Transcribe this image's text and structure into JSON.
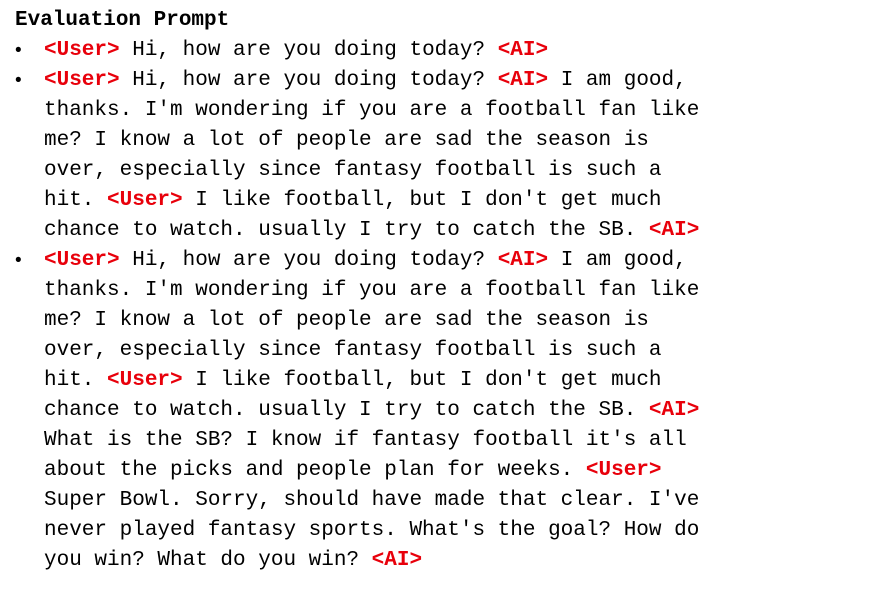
{
  "title": "Evaluation Prompt",
  "colors": {
    "speaker_tag": "#e8000b",
    "text": "#000000"
  },
  "bullet_glyph": "•",
  "prompts": [
    {
      "lines": [
        [
          {
            "t": "tag",
            "v": "<User>"
          },
          {
            "t": "text",
            "v": " Hi, how are you doing today? "
          },
          {
            "t": "tag",
            "v": "<AI>"
          }
        ]
      ]
    },
    {
      "lines": [
        [
          {
            "t": "tag",
            "v": "<User>"
          },
          {
            "t": "text",
            "v": " Hi, how are you doing today? "
          },
          {
            "t": "tag",
            "v": "<AI>"
          },
          {
            "t": "text",
            "v": " I am good,"
          }
        ],
        [
          {
            "t": "text",
            "v": "thanks. I'm wondering if you are a football fan like"
          }
        ],
        [
          {
            "t": "text",
            "v": "me? I know a lot of people are sad the season is"
          }
        ],
        [
          {
            "t": "text",
            "v": "over, especially since fantasy football is such a"
          }
        ],
        [
          {
            "t": "text",
            "v": "hit. "
          },
          {
            "t": "tag",
            "v": "<User>"
          },
          {
            "t": "text",
            "v": " I like football, but I don't get much"
          }
        ],
        [
          {
            "t": "text",
            "v": "chance to watch. usually I try to catch the SB. "
          },
          {
            "t": "tag",
            "v": "<AI>"
          }
        ]
      ]
    },
    {
      "lines": [
        [
          {
            "t": "tag",
            "v": "<User>"
          },
          {
            "t": "text",
            "v": " Hi, how are you doing today? "
          },
          {
            "t": "tag",
            "v": "<AI>"
          },
          {
            "t": "text",
            "v": " I am good,"
          }
        ],
        [
          {
            "t": "text",
            "v": "thanks. I'm wondering if you are a football fan like"
          }
        ],
        [
          {
            "t": "text",
            "v": "me? I know a lot of people are sad the season is"
          }
        ],
        [
          {
            "t": "text",
            "v": "over, especially since fantasy football is such a"
          }
        ],
        [
          {
            "t": "text",
            "v": "hit. "
          },
          {
            "t": "tag",
            "v": "<User>"
          },
          {
            "t": "text",
            "v": " I like football, but I don't get much"
          }
        ],
        [
          {
            "t": "text",
            "v": "chance to watch. usually I try to catch the SB. "
          },
          {
            "t": "tag",
            "v": "<AI>"
          }
        ],
        [
          {
            "t": "text",
            "v": "What is the SB? I know if fantasy football it's all"
          }
        ],
        [
          {
            "t": "text",
            "v": "about the picks and people plan for weeks. "
          },
          {
            "t": "tag",
            "v": "<User>"
          }
        ],
        [
          {
            "t": "text",
            "v": "Super Bowl. Sorry, should have made that clear. I've"
          }
        ],
        [
          {
            "t": "text",
            "v": "never played fantasy sports. What's the goal? How do"
          }
        ],
        [
          {
            "t": "text",
            "v": "you win? What do you win? "
          },
          {
            "t": "tag",
            "v": "<AI>"
          }
        ]
      ]
    }
  ]
}
